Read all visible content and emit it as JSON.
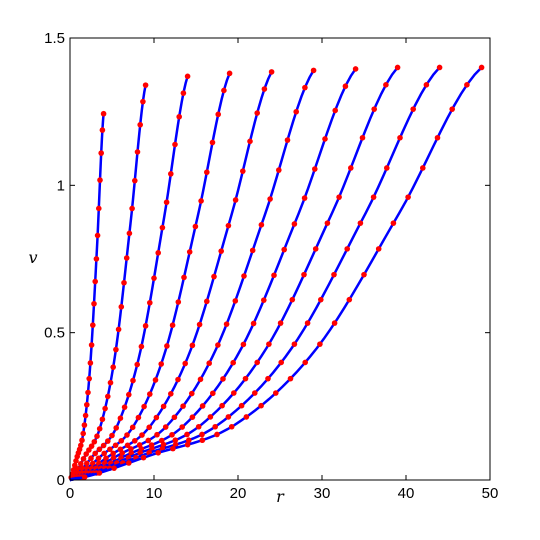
{
  "chart_data": {
    "type": "line",
    "title": "",
    "xlabel": "r",
    "ylabel": "v",
    "xlim": [
      0,
      50
    ],
    "ylim": [
      0,
      1.5
    ],
    "xticks": [
      "0",
      "10",
      "20",
      "30",
      "40",
      "50"
    ],
    "yticks": [
      "0",
      "0.5",
      "1",
      "1.5"
    ],
    "grid": false,
    "legend": "none",
    "line_color": "#0000ff",
    "marker_color": "#ff0000",
    "series": [
      {
        "x": [
          0,
          0.8,
          1.6,
          2.4,
          3.2,
          4.0
        ],
        "y": [
          0,
          0.074,
          0.163,
          0.386,
          0.781,
          1.243
        ]
      },
      {
        "x": [
          0,
          1.8,
          3.6,
          5.4,
          7.2,
          9.0
        ],
        "y": [
          0,
          0.082,
          0.18,
          0.43,
          0.87,
          1.34
        ]
      },
      {
        "x": [
          0,
          2.8,
          5.6,
          8.4,
          11.2,
          14.0
        ],
        "y": [
          0,
          0.084,
          0.183,
          0.44,
          0.89,
          1.37
        ]
      },
      {
        "x": [
          0,
          3.8,
          7.6,
          11.4,
          15.2,
          19.0
        ],
        "y": [
          0,
          0.084,
          0.185,
          0.442,
          0.894,
          1.38
        ]
      },
      {
        "x": [
          0,
          4.8,
          9.6,
          14.4,
          19.2,
          24.0
        ],
        "y": [
          0,
          0.084,
          0.185,
          0.444,
          0.897,
          1.385
        ]
      },
      {
        "x": [
          0,
          5.8,
          11.6,
          17.4,
          23.2,
          29.0
        ],
        "y": [
          0,
          0.085,
          0.186,
          0.445,
          0.9,
          1.39
        ]
      },
      {
        "x": [
          0,
          6.8,
          13.6,
          20.4,
          27.2,
          34.0
        ],
        "y": [
          0,
          0.085,
          0.186,
          0.447,
          0.903,
          1.395
        ]
      },
      {
        "x": [
          0,
          7.8,
          15.6,
          23.4,
          31.2,
          39.0
        ],
        "y": [
          0,
          0.086,
          0.187,
          0.448,
          0.906,
          1.4
        ]
      },
      {
        "x": [
          0,
          8.8,
          17.6,
          26.4,
          35.2,
          44.0
        ],
        "y": [
          0,
          0.086,
          0.187,
          0.448,
          0.906,
          1.4
        ]
      },
      {
        "x": [
          0,
          9.8,
          19.6,
          29.4,
          39.2,
          49.0
        ],
        "y": [
          0,
          0.086,
          0.187,
          0.448,
          0.906,
          1.4
        ]
      }
    ]
  }
}
